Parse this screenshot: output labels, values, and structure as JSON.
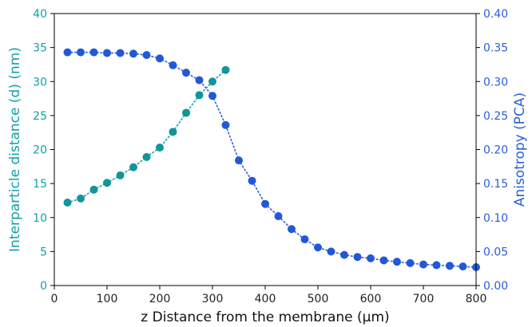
{
  "chart_data": {
    "type": "scatter",
    "xlabel": "z Distance from the membrane (μm)",
    "ylabel_left": "Interparticle distance (d) (nm)",
    "ylabel_right": "Anisotropy (PCA)",
    "xlim": [
      0,
      800
    ],
    "ylim_left": [
      0,
      40
    ],
    "ylim_right": [
      0,
      0.4
    ],
    "x_ticks": [
      0,
      100,
      200,
      300,
      400,
      500,
      600,
      700,
      800
    ],
    "x_tick_labels": [
      "0",
      "100",
      "200",
      "300",
      "400",
      "500",
      "600",
      "700",
      "800"
    ],
    "y_left_ticks": [
      0,
      5,
      10,
      15,
      20,
      25,
      30,
      35,
      40
    ],
    "y_left_tick_labels": [
      "0",
      "5",
      "10",
      "15",
      "20",
      "25",
      "30",
      "35",
      "40"
    ],
    "y_right_ticks": [
      0,
      0.05,
      0.1,
      0.15,
      0.2,
      0.25,
      0.3,
      0.35,
      0.4
    ],
    "y_right_tick_labels": [
      "0.00",
      "0.05",
      "0.10",
      "0.15",
      "0.20",
      "0.25",
      "0.30",
      "0.35",
      "0.40"
    ],
    "grid": false,
    "colors": {
      "left": "#12a0a8",
      "right": "#2a5fd6",
      "left_marker": "#10969a",
      "right_marker": "#2258d8"
    },
    "series": [
      {
        "axis": "left",
        "x": [
          25,
          50,
          75,
          100,
          125,
          150,
          175,
          200,
          225,
          250,
          275,
          300,
          325
        ],
        "values": [
          12.2,
          12.8,
          14.1,
          15.1,
          16.2,
          17.4,
          18.9,
          20.3,
          22.6,
          25.4,
          28.0,
          30.0,
          31.7
        ]
      },
      {
        "axis": "right",
        "x": [
          25,
          50,
          75,
          100,
          125,
          150,
          175,
          200,
          225,
          250,
          275,
          300,
          325,
          350,
          375,
          400,
          425,
          450,
          475,
          500,
          525,
          550,
          575,
          600,
          625,
          650,
          675,
          700,
          725,
          750,
          775,
          800
        ],
        "values": [
          0.343,
          0.343,
          0.343,
          0.342,
          0.342,
          0.341,
          0.339,
          0.334,
          0.324,
          0.313,
          0.302,
          0.279,
          0.236,
          0.184,
          0.154,
          0.12,
          0.102,
          0.083,
          0.068,
          0.056,
          0.05,
          0.045,
          0.042,
          0.04,
          0.037,
          0.035,
          0.033,
          0.031,
          0.03,
          0.029,
          0.028,
          0.027
        ]
      }
    ]
  }
}
